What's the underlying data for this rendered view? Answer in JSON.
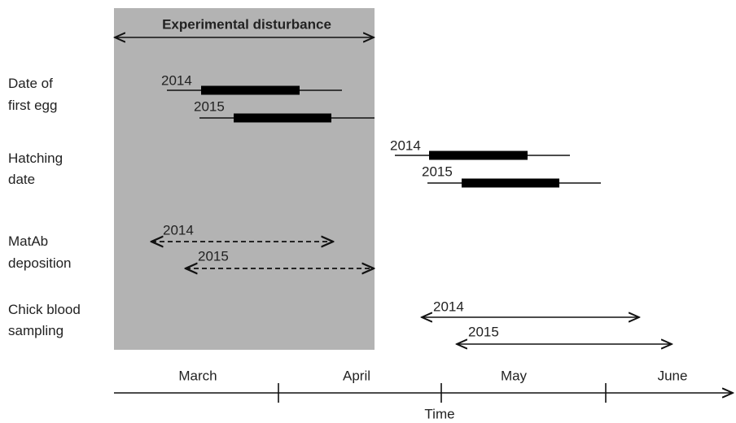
{
  "period": {
    "label": "Experimental disturbance"
  },
  "rows": [
    {
      "label": [
        "Date of",
        "first egg"
      ],
      "years": [
        "2014",
        "2015"
      ]
    },
    {
      "label": [
        "Hatching",
        "date"
      ],
      "years": [
        "2014",
        "2015"
      ]
    },
    {
      "label": [
        "MatAb",
        "deposition"
      ],
      "years": [
        "2014",
        "2015"
      ]
    },
    {
      "label": [
        "Chick blood",
        "sampling"
      ],
      "years": [
        "2014",
        "2015"
      ]
    }
  ],
  "axis": {
    "months": [
      "March",
      "April",
      "May",
      "June"
    ],
    "label": "Time"
  }
}
